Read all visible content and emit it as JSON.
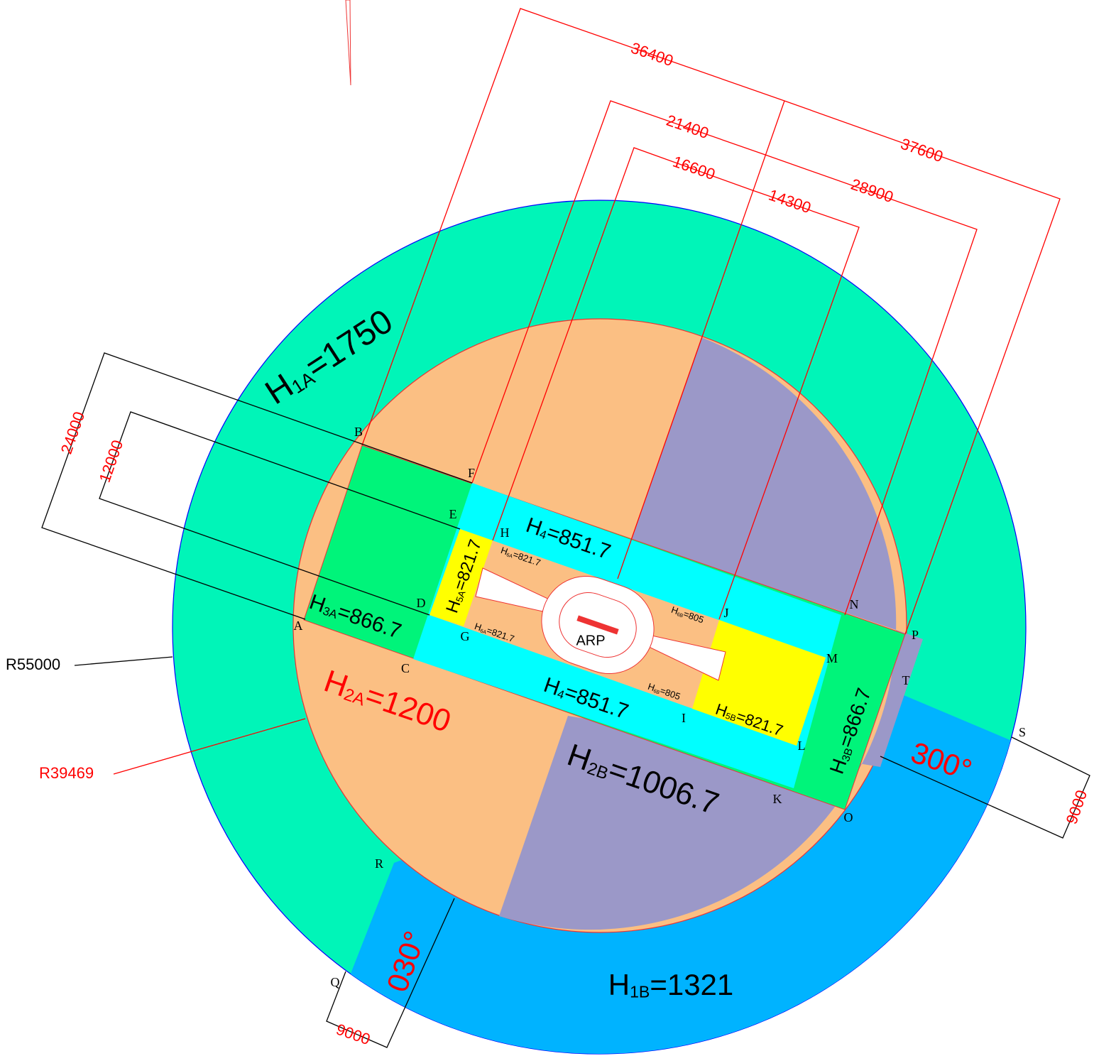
{
  "dimensions": [
    "36400",
    "21400",
    "16600",
    "14300",
    "28900",
    "37600",
    "24000",
    "12000",
    "9000",
    "9000"
  ],
  "radii": [
    "R55000",
    "R39469"
  ],
  "headings": [
    "300°",
    "030°"
  ],
  "reference_point": "ARP",
  "points": [
    "A",
    "B",
    "C",
    "D",
    "E",
    "F",
    "G",
    "H",
    "I",
    "J",
    "K",
    "L",
    "M",
    "N",
    "O",
    "P",
    "Q",
    "R",
    "S",
    "T"
  ],
  "surfaces": [
    {
      "symbol": "H",
      "sub": "1A",
      "text": "=1750"
    },
    {
      "symbol": "H",
      "sub": "1B",
      "text": "=1321"
    },
    {
      "symbol": "H",
      "sub": "2A",
      "text": "=1200"
    },
    {
      "symbol": "H",
      "sub": "2B",
      "text": "=1006.7"
    },
    {
      "symbol": "H",
      "sub": "3A",
      "text": "=866.7"
    },
    {
      "symbol": "H",
      "sub": "3B",
      "text": "=866.7"
    },
    {
      "symbol": "H",
      "sub": "4",
      "text": "=851.7"
    },
    {
      "symbol": "H",
      "sub": "4",
      "text": "=851.7"
    },
    {
      "symbol": "H",
      "sub": "5A",
      "text": "=821.7"
    },
    {
      "symbol": "H",
      "sub": "5B",
      "text": "=821.7"
    },
    {
      "symbol": "H",
      "sub": "6A",
      "text": "=821.7"
    },
    {
      "symbol": "H",
      "sub": "6A",
      "text": "=821.7"
    },
    {
      "symbol": "H",
      "sub": "6B",
      "text": "=805"
    },
    {
      "symbol": "H",
      "sub": "6B",
      "text": "=805"
    }
  ]
}
